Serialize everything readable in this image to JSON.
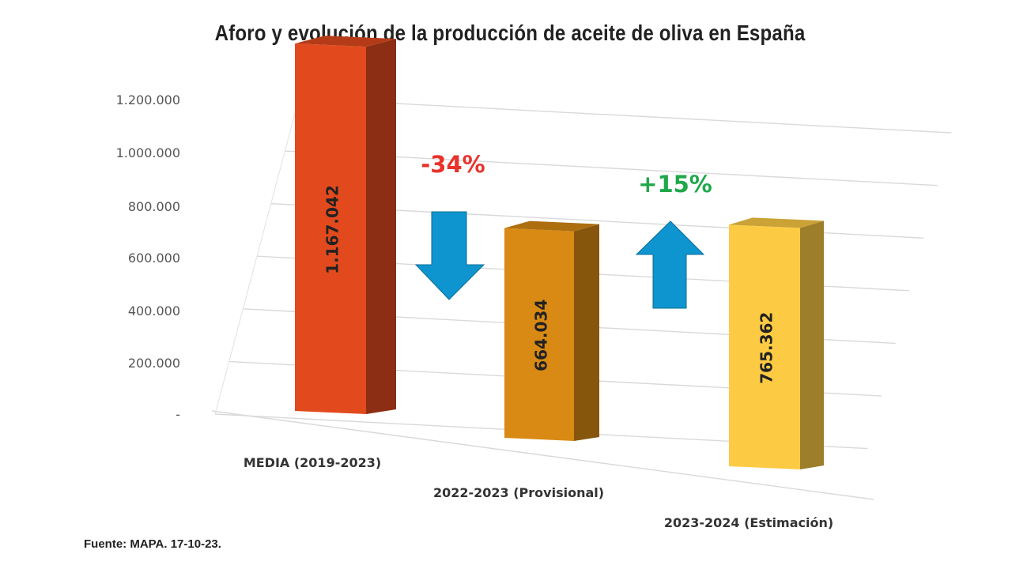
{
  "chart_data": {
    "type": "bar",
    "title": "Aforo y evolución de la producción de aceite de oliva en España",
    "categories": [
      "MEDIA (2019-2023)",
      "2022-2023 (Provisional)",
      "2023-2024 (Estimación)"
    ],
    "values": [
      1167042,
      664034,
      765362
    ],
    "value_labels": [
      "1.167.042",
      "664.034",
      "765.362"
    ],
    "bar_colors": [
      "#E24A1E",
      "#D88A14",
      "#FDCB43"
    ],
    "y_ticks": [
      "-",
      "200.000",
      "400.000",
      "600.000",
      "800.000",
      "1.000.000",
      "1.200.000"
    ],
    "ylim": [
      0,
      1200000
    ],
    "grid": true,
    "projection": "3d",
    "annotations": [
      {
        "text": "-34%",
        "color": "#E8322B",
        "arrow": "down",
        "arrow_color": "#0E95CF"
      },
      {
        "text": "+15%",
        "color": "#1FA84A",
        "arrow": "up",
        "arrow_color": "#0E95CF"
      }
    ]
  },
  "source": "Fuente: MAPA. 17-10-23."
}
